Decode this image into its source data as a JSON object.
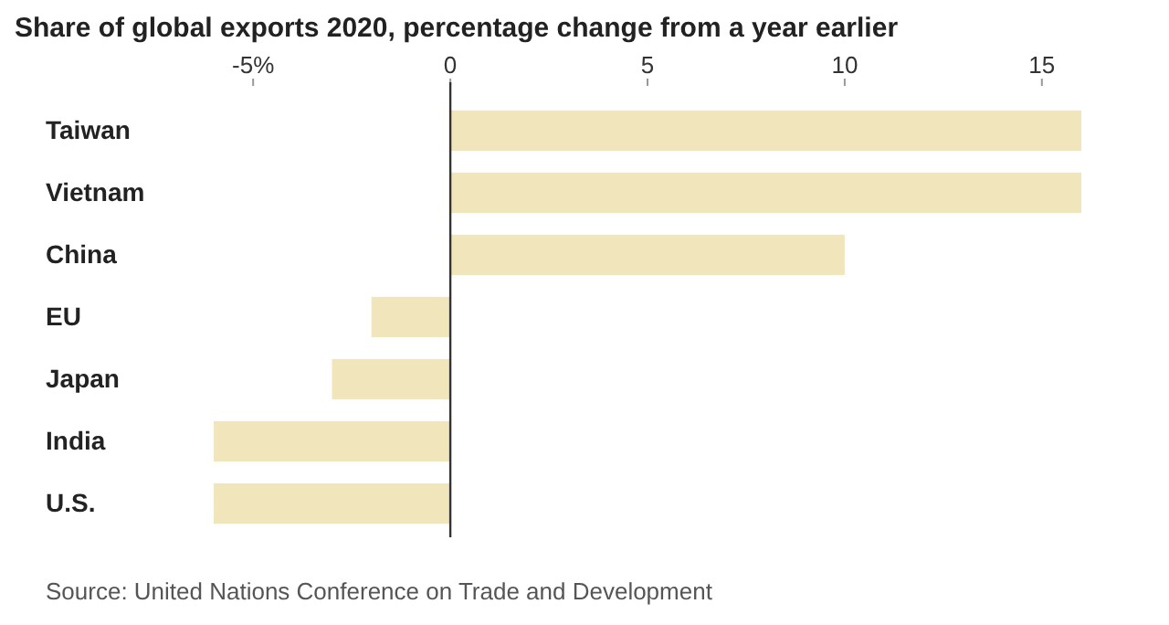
{
  "chart_data": {
    "type": "bar",
    "orientation": "horizontal",
    "title": "Share of global exports 2020, percentage change from a year earlier",
    "categories": [
      "Taiwan",
      "Vietnam",
      "China",
      "EU",
      "Japan",
      "India",
      "U.S."
    ],
    "values": [
      16,
      16,
      10,
      -2,
      -3,
      -6,
      -6
    ],
    "color": "#f0e5bb",
    "xlim": [
      -6,
      16
    ],
    "xticks": [
      {
        "value": -5,
        "label": "-5%"
      },
      0,
      5,
      10,
      15
    ],
    "annotations": [
      "Source: United Nations Conference on Trade and Development"
    ]
  }
}
